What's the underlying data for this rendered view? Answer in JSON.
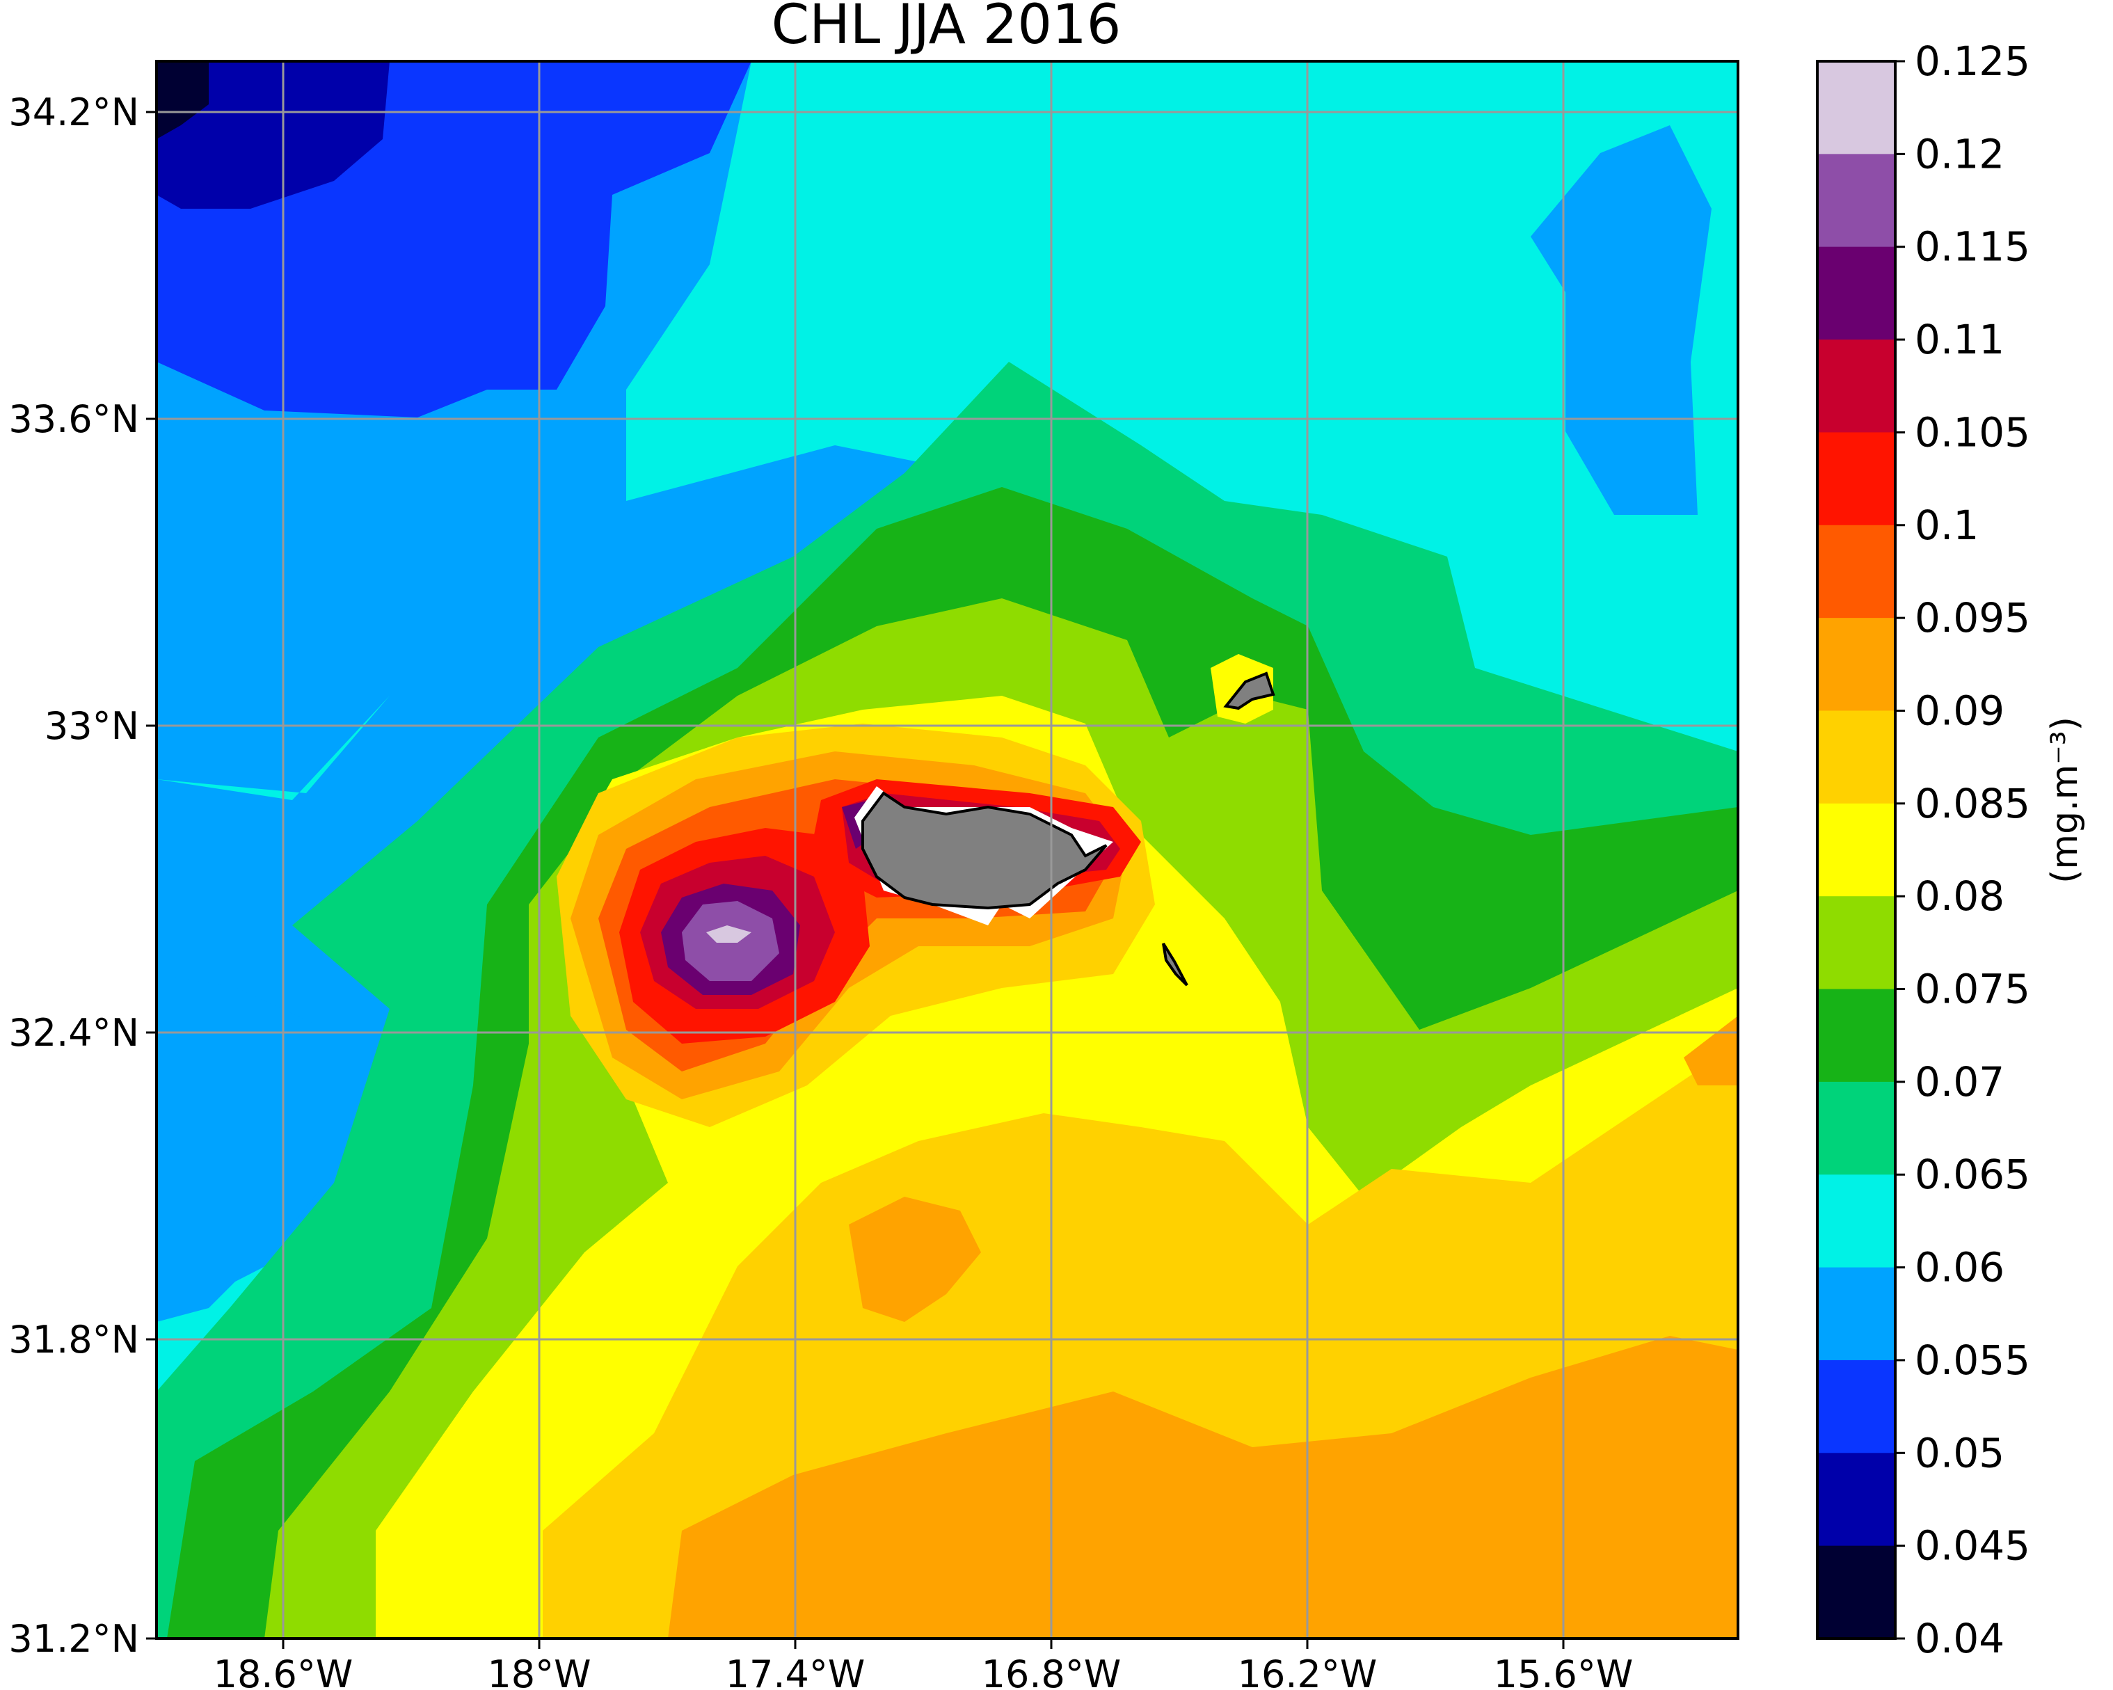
{
  "title": "CHL JJA 2016",
  "colorbar": {
    "unit": "(mg.m⁻³)",
    "ticks": [
      "0.125",
      "0.12",
      "0.115",
      "0.11",
      "0.105",
      "0.1",
      "0.095",
      "0.09",
      "0.085",
      "0.08",
      "0.075",
      "0.07",
      "0.065",
      "0.06",
      "0.055",
      "0.05",
      "0.045",
      "0.04"
    ],
    "colors": [
      "#d8c8e0",
      "#8e4ea8",
      "#6a0070",
      "#c8002e",
      "#ff1400",
      "#ff5a00",
      "#ffa300",
      "#ffd100",
      "#ffff00",
      "#8fdc00",
      "#17b317",
      "#00d37a",
      "#00f2e6",
      "#00a3ff",
      "#0a36ff",
      "#0000aa",
      "#000033"
    ]
  },
  "axes": {
    "x_ticks": [
      "18.6°W",
      "18°W",
      "17.4°W",
      "16.8°W",
      "16.2°W",
      "15.6°W"
    ],
    "y_ticks": [
      "34.2°N",
      "33.6°N",
      "33°N",
      "32.4°N",
      "31.8°N",
      "31.2°N"
    ]
  },
  "chart_data": {
    "type": "heatmap",
    "title": "CHL JJA 2016",
    "variable": "chlorophyll concentration",
    "colorbar_label": "(mg.m⁻³)",
    "value_range": [
      0.04,
      0.125
    ],
    "levels": [
      0.04,
      0.045,
      0.05,
      0.055,
      0.06,
      0.065,
      0.07,
      0.075,
      0.08,
      0.085,
      0.09,
      0.095,
      0.1,
      0.105,
      0.11,
      0.115,
      0.12,
      0.125
    ],
    "xlim": [
      -18.9,
      -15.9
    ],
    "ylim": [
      31.2,
      34.3
    ],
    "grid": true,
    "colorbar_position": "right",
    "regions": [
      {
        "area": "north-west corner",
        "value": 0.045
      },
      {
        "area": "north-west",
        "value": 0.05
      },
      {
        "area": "north",
        "value": 0.055
      },
      {
        "area": "north-east / far west",
        "value": 0.06
      },
      {
        "area": "ring around Madeira",
        "value": 0.07
      },
      {
        "area": "south and south-east",
        "value": 0.085
      },
      {
        "area": "far south-east",
        "value": 0.09
      },
      {
        "area": "west of Madeira hotspot",
        "value": 0.12
      },
      {
        "area": "hotspot peak (~17.55°W, 32.65°N)",
        "value": 0.125
      }
    ]
  }
}
